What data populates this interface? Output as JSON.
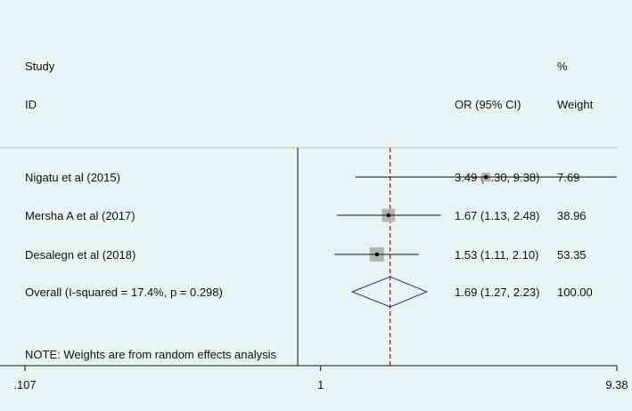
{
  "chart_data": {
    "type": "forest",
    "header": {
      "study_line1": "Study",
      "study_line2": "ID",
      "or_label": "OR (95% CI)",
      "weight_line1": "%",
      "weight_line2": "Weight"
    },
    "studies": [
      {
        "label": "Nigatu et al (2015)",
        "or": 3.49,
        "lo": 1.3,
        "hi": 9.38,
        "or_text": "3.49 (1.30, 9.38)",
        "weight": 7.69,
        "weight_text": "7.69"
      },
      {
        "label": "Mersha A et al (2017)",
        "or": 1.67,
        "lo": 1.13,
        "hi": 2.48,
        "or_text": "1.67 (1.13, 2.48)",
        "weight": 38.96,
        "weight_text": "38.96"
      },
      {
        "label": "Desalegn et al (2018)",
        "or": 1.53,
        "lo": 1.11,
        "hi": 2.1,
        "or_text": "1.53 (1.11, 2.10)",
        "weight": 53.35,
        "weight_text": "53.35"
      }
    ],
    "overall": {
      "label": "Overall  (I-squared = 17.4%, p = 0.298)",
      "or": 1.69,
      "lo": 1.27,
      "hi": 2.23,
      "or_text": "1.69 (1.27, 2.23)",
      "weight_text": "100.00"
    },
    "note": "NOTE: Weights are from random effects analysis",
    "x_ticks": [
      {
        "value": 0.107,
        "label": ".107"
      },
      {
        "value": 1,
        "label": "1"
      },
      {
        "value": 9.38,
        "label": "9.38"
      }
    ],
    "x_scale": "log",
    "xlim": [
      0.107,
      9.38
    ],
    "reference_line": 1,
    "colors": {
      "background": "#eaf2f3",
      "diamond": "#2b2b8c",
      "overall_line": "#8b1a1a",
      "box": "#b3b3b3"
    }
  }
}
